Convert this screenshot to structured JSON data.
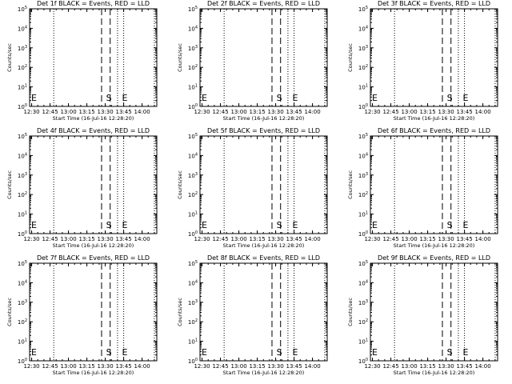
{
  "figure": {
    "background": "#ffffff",
    "ink": "#000000"
  },
  "chart_data": [
    {
      "type": "line",
      "title": "Det 1f BLACK = Events, RED = LLD",
      "xlabel": "Start Time (16-Jul-16 12:28:20)",
      "ylabel": "Counts/sec",
      "x_ticks": [
        "12:30",
        "12:45",
        "13:00",
        "13:15",
        "13:30",
        "13:45",
        "14:00"
      ],
      "x_range": [
        "12:28:20",
        "14:12:00"
      ],
      "y_scale": "log",
      "y_ticks": [
        {
          "base": "10",
          "exp": "0"
        },
        {
          "base": "10",
          "exp": "1"
        },
        {
          "base": "10",
          "exp": "2"
        },
        {
          "base": "10",
          "exp": "3"
        },
        {
          "base": "10",
          "exp": "4"
        },
        {
          "base": "10",
          "exp": "5"
        }
      ],
      "y_range": [
        1,
        100000
      ],
      "series": [],
      "vlines_dotted": [
        "12:48",
        "13:40",
        "13:45",
        "14:10"
      ],
      "vlines_dashed": [
        "13:27",
        "13:34"
      ],
      "markers": [
        {
          "label": "E",
          "x": "12:29"
        },
        {
          "label": "S",
          "x": "13:30"
        },
        {
          "label": "E",
          "x": "13:43"
        }
      ]
    },
    {
      "type": "line",
      "title": "Det 2f BLACK = Events, RED = LLD",
      "xlabel": "Start Time (16-Jul-16 12:28:20)",
      "ylabel": "Counts/sec",
      "x_ticks": [
        "12:30",
        "12:45",
        "13:00",
        "13:15",
        "13:30",
        "13:45",
        "14:00"
      ],
      "x_range": [
        "12:28:20",
        "14:12:00"
      ],
      "y_scale": "log",
      "y_ticks": [
        {
          "base": "10",
          "exp": "0"
        },
        {
          "base": "10",
          "exp": "1"
        },
        {
          "base": "10",
          "exp": "2"
        },
        {
          "base": "10",
          "exp": "3"
        },
        {
          "base": "10",
          "exp": "4"
        },
        {
          "base": "10",
          "exp": "5"
        }
      ],
      "y_range": [
        1,
        100000
      ],
      "series": [],
      "vlines_dotted": [
        "12:48",
        "13:40",
        "13:45",
        "14:10"
      ],
      "vlines_dashed": [
        "13:27",
        "13:34"
      ],
      "markers": [
        {
          "label": "E",
          "x": "12:29"
        },
        {
          "label": "S",
          "x": "13:30"
        },
        {
          "label": "E",
          "x": "13:43"
        }
      ]
    },
    {
      "type": "line",
      "title": "Det 3f BLACK = Events, RED = LLD",
      "xlabel": "Start Time (16-Jul-16 12:28:20)",
      "ylabel": "Counts/sec",
      "x_ticks": [
        "12:30",
        "12:45",
        "13:00",
        "13:15",
        "13:30",
        "13:45",
        "14:00"
      ],
      "x_range": [
        "12:28:20",
        "14:12:00"
      ],
      "y_scale": "log",
      "y_ticks": [
        {
          "base": "10",
          "exp": "0"
        },
        {
          "base": "10",
          "exp": "1"
        },
        {
          "base": "10",
          "exp": "2"
        },
        {
          "base": "10",
          "exp": "3"
        },
        {
          "base": "10",
          "exp": "4"
        },
        {
          "base": "10",
          "exp": "5"
        }
      ],
      "y_range": [
        1,
        100000
      ],
      "series": [],
      "vlines_dotted": [
        "12:48",
        "13:40",
        "13:45",
        "14:10"
      ],
      "vlines_dashed": [
        "13:27",
        "13:34"
      ],
      "markers": [
        {
          "label": "E",
          "x": "12:29"
        },
        {
          "label": "S",
          "x": "13:30"
        },
        {
          "label": "E",
          "x": "13:43"
        }
      ]
    },
    {
      "type": "line",
      "title": "Det 4f BLACK = Events, RED = LLD",
      "xlabel": "Start Time (16-Jul-16 12:28:20)",
      "ylabel": "Counts/sec",
      "x_ticks": [
        "12:30",
        "12:45",
        "13:00",
        "13:15",
        "13:30",
        "13:45",
        "14:00"
      ],
      "x_range": [
        "12:28:20",
        "14:12:00"
      ],
      "y_scale": "log",
      "y_ticks": [
        {
          "base": "10",
          "exp": "0"
        },
        {
          "base": "10",
          "exp": "1"
        },
        {
          "base": "10",
          "exp": "2"
        },
        {
          "base": "10",
          "exp": "3"
        },
        {
          "base": "10",
          "exp": "4"
        },
        {
          "base": "10",
          "exp": "5"
        }
      ],
      "y_range": [
        1,
        100000
      ],
      "series": [],
      "vlines_dotted": [
        "12:48",
        "13:40",
        "13:45",
        "14:10"
      ],
      "vlines_dashed": [
        "13:27",
        "13:34"
      ],
      "markers": [
        {
          "label": "E",
          "x": "12:29"
        },
        {
          "label": "S",
          "x": "13:30"
        },
        {
          "label": "E",
          "x": "13:43"
        }
      ]
    },
    {
      "type": "line",
      "title": "Det 5f BLACK = Events, RED = LLD",
      "xlabel": "Start Time (16-Jul-16 12:28:20)",
      "ylabel": "Counts/sec",
      "x_ticks": [
        "12:30",
        "12:45",
        "13:00",
        "13:15",
        "13:30",
        "13:45",
        "14:00"
      ],
      "x_range": [
        "12:28:20",
        "14:12:00"
      ],
      "y_scale": "log",
      "y_ticks": [
        {
          "base": "10",
          "exp": "0"
        },
        {
          "base": "10",
          "exp": "1"
        },
        {
          "base": "10",
          "exp": "2"
        },
        {
          "base": "10",
          "exp": "3"
        },
        {
          "base": "10",
          "exp": "4"
        },
        {
          "base": "10",
          "exp": "5"
        }
      ],
      "y_range": [
        1,
        100000
      ],
      "series": [],
      "vlines_dotted": [
        "12:48",
        "13:40",
        "13:45",
        "14:10"
      ],
      "vlines_dashed": [
        "13:27",
        "13:34"
      ],
      "markers": [
        {
          "label": "E",
          "x": "12:29"
        },
        {
          "label": "S",
          "x": "13:30"
        },
        {
          "label": "E",
          "x": "13:43"
        }
      ]
    },
    {
      "type": "line",
      "title": "Det 6f BLACK = Events, RED = LLD",
      "xlabel": "Start Time (16-Jul-16 12:28:20)",
      "ylabel": "Counts/sec",
      "x_ticks": [
        "12:30",
        "12:45",
        "13:00",
        "13:15",
        "13:30",
        "13:45",
        "14:00"
      ],
      "x_range": [
        "12:28:20",
        "14:12:00"
      ],
      "y_scale": "log",
      "y_ticks": [
        {
          "base": "10",
          "exp": "0"
        },
        {
          "base": "10",
          "exp": "1"
        },
        {
          "base": "10",
          "exp": "2"
        },
        {
          "base": "10",
          "exp": "3"
        },
        {
          "base": "10",
          "exp": "4"
        },
        {
          "base": "10",
          "exp": "5"
        }
      ],
      "y_range": [
        1,
        100000
      ],
      "series": [],
      "vlines_dotted": [
        "12:48",
        "13:40",
        "13:45",
        "14:10"
      ],
      "vlines_dashed": [
        "13:27",
        "13:34"
      ],
      "markers": [
        {
          "label": "E",
          "x": "12:29"
        },
        {
          "label": "S",
          "x": "13:30"
        },
        {
          "label": "E",
          "x": "13:43"
        }
      ]
    },
    {
      "type": "line",
      "title": "Det 7f BLACK = Events, RED = LLD",
      "xlabel": "Start Time (16-Jul-16 12:28:20)",
      "ylabel": "Counts/sec",
      "x_ticks": [
        "12:30",
        "12:45",
        "13:00",
        "13:15",
        "13:30",
        "13:45",
        "14:00"
      ],
      "x_range": [
        "12:28:20",
        "14:12:00"
      ],
      "y_scale": "log",
      "y_ticks": [
        {
          "base": "10",
          "exp": "0"
        },
        {
          "base": "10",
          "exp": "1"
        },
        {
          "base": "10",
          "exp": "2"
        },
        {
          "base": "10",
          "exp": "3"
        },
        {
          "base": "10",
          "exp": "4"
        },
        {
          "base": "10",
          "exp": "5"
        }
      ],
      "y_range": [
        1,
        100000
      ],
      "series": [],
      "vlines_dotted": [
        "12:48",
        "13:40",
        "13:45",
        "14:10"
      ],
      "vlines_dashed": [
        "13:27",
        "13:34"
      ],
      "markers": [
        {
          "label": "E",
          "x": "12:29"
        },
        {
          "label": "S",
          "x": "13:30"
        },
        {
          "label": "E",
          "x": "13:43"
        }
      ]
    },
    {
      "type": "line",
      "title": "Det 8f BLACK = Events, RED = LLD",
      "xlabel": "Start Time (16-Jul-16 12:28:20)",
      "ylabel": "Counts/sec",
      "x_ticks": [
        "12:30",
        "12:45",
        "13:00",
        "13:15",
        "13:30",
        "13:45",
        "14:00"
      ],
      "x_range": [
        "12:28:20",
        "14:12:00"
      ],
      "y_scale": "log",
      "y_ticks": [
        {
          "base": "10",
          "exp": "0"
        },
        {
          "base": "10",
          "exp": "1"
        },
        {
          "base": "10",
          "exp": "2"
        },
        {
          "base": "10",
          "exp": "3"
        },
        {
          "base": "10",
          "exp": "4"
        },
        {
          "base": "10",
          "exp": "5"
        }
      ],
      "y_range": [
        1,
        100000
      ],
      "series": [],
      "vlines_dotted": [
        "12:48",
        "13:40",
        "13:45",
        "14:10"
      ],
      "vlines_dashed": [
        "13:27",
        "13:34"
      ],
      "markers": [
        {
          "label": "E",
          "x": "12:29"
        },
        {
          "label": "S",
          "x": "13:30"
        },
        {
          "label": "E",
          "x": "13:43"
        }
      ]
    },
    {
      "type": "line",
      "title": "Det 9f BLACK = Events, RED = LLD",
      "xlabel": "Start Time (16-Jul-16 12:28:20)",
      "ylabel": "Counts/sec",
      "x_ticks": [
        "12:30",
        "12:45",
        "13:00",
        "13:15",
        "13:30",
        "13:45",
        "14:00"
      ],
      "x_range": [
        "12:28:20",
        "14:12:00"
      ],
      "y_scale": "log",
      "y_ticks": [
        {
          "base": "10",
          "exp": "0"
        },
        {
          "base": "10",
          "exp": "1"
        },
        {
          "base": "10",
          "exp": "2"
        },
        {
          "base": "10",
          "exp": "3"
        },
        {
          "base": "10",
          "exp": "4"
        },
        {
          "base": "10",
          "exp": "5"
        }
      ],
      "y_range": [
        1,
        100000
      ],
      "series": [],
      "vlines_dotted": [
        "12:48",
        "13:40",
        "13:45",
        "14:10"
      ],
      "vlines_dashed": [
        "13:27",
        "13:34"
      ],
      "markers": [
        {
          "label": "E",
          "x": "12:29"
        },
        {
          "label": "S",
          "x": "13:30"
        },
        {
          "label": "E",
          "x": "13:43"
        }
      ]
    }
  ]
}
